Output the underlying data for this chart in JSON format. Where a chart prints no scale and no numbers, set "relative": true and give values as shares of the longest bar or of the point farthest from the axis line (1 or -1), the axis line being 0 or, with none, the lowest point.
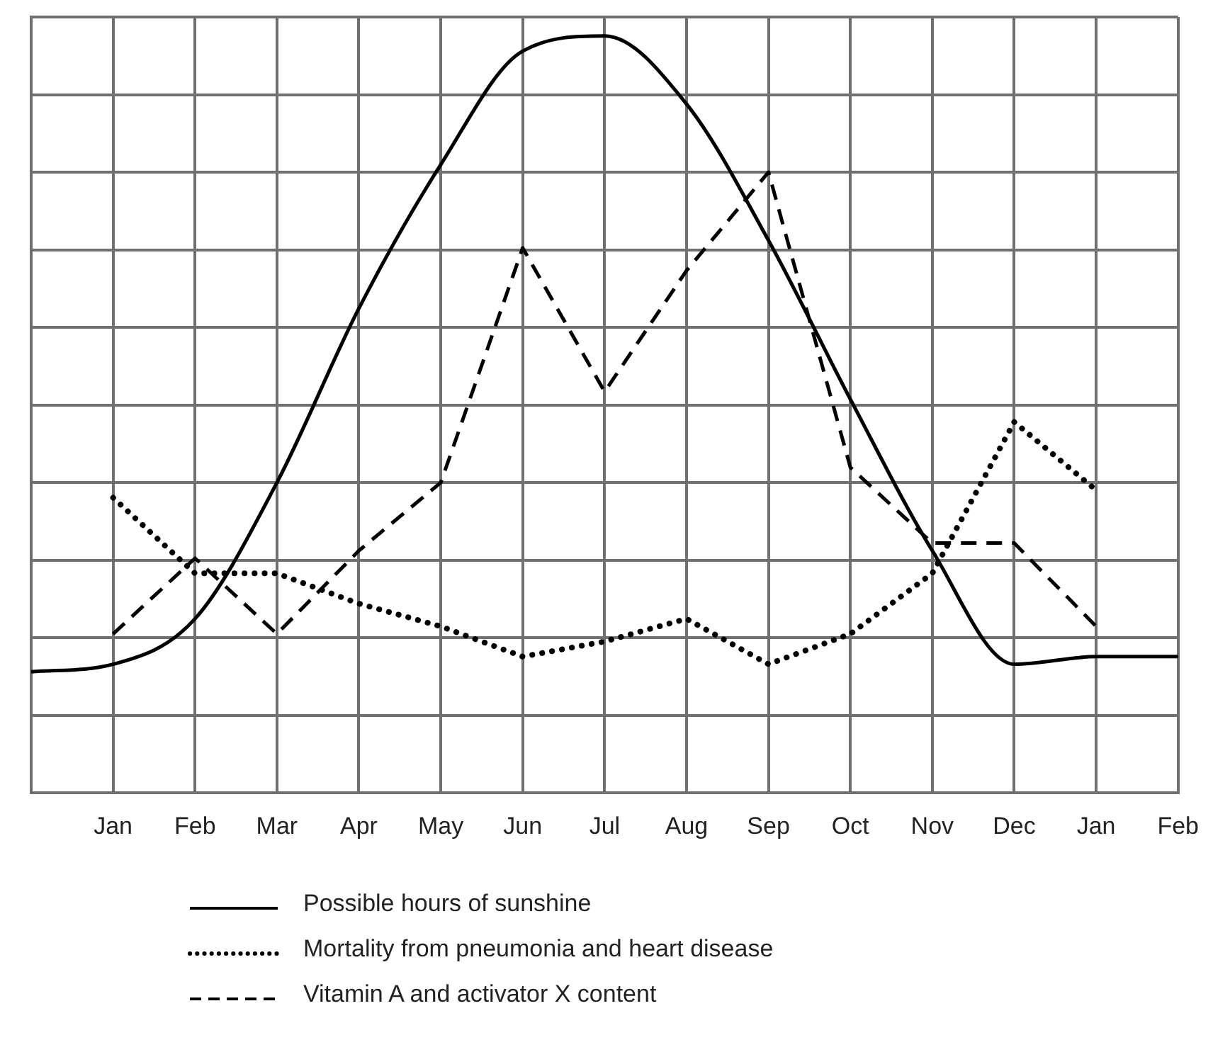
{
  "chart_data": {
    "type": "line",
    "relative": true,
    "grid": true,
    "legend": "bottom",
    "marker": "none",
    "categories": [
      null,
      "Jan",
      "Feb",
      "Mar",
      "Apr",
      "May",
      "Jun",
      "Jul",
      "Aug",
      "Sep",
      "Oct",
      "Nov",
      "Dec",
      "Jan",
      "Feb"
    ],
    "series": [
      {
        "name": "Possible hours of sunshine",
        "color": "#000000",
        "line_style": "solid",
        "values": [
          0.16,
          0.17,
          0.23,
          0.41,
          0.64,
          0.83,
          0.98,
          1,
          0.91,
          0.73,
          0.52,
          0.32,
          0.17,
          0.18,
          0.18
        ]
      },
      {
        "name": "Mortality from pneumonia and heart disease",
        "color": "#000000",
        "line_style": "dotted",
        "values": [
          null,
          0.39,
          0.29,
          0.29,
          0.25,
          0.22,
          0.18,
          0.2,
          0.23,
          0.17,
          0.21,
          0.29,
          0.49,
          0.4,
          null
        ]
      },
      {
        "name": "Vitamin A and activator X content",
        "color": "#000000",
        "line_style": "dashed",
        "values": [
          null,
          0.21,
          0.31,
          0.21,
          0.32,
          0.41,
          0.72,
          0.53,
          0.69,
          0.82,
          0.43,
          0.33,
          0.33,
          0.22,
          null
        ]
      }
    ]
  }
}
